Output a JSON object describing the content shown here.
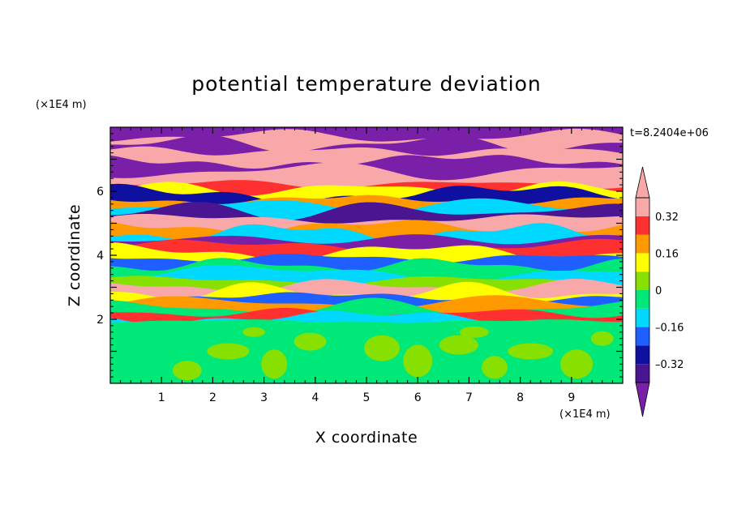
{
  "chart_data": {
    "type": "heatmap",
    "title": "potential temperature deviation",
    "xlabel": "X coordinate",
    "ylabel": "Z coordinate",
    "x_unit": "(×1E4 m)",
    "z_unit": "(×1E4 m)",
    "timestamp": "t=8.2404e+06",
    "xlim": [
      0,
      10
    ],
    "ylim": [
      0,
      8
    ],
    "x_ticks": [
      "1",
      "2",
      "3",
      "4",
      "5",
      "6",
      "7",
      "8",
      "9"
    ],
    "y_ticks": [
      "2",
      "4",
      "6"
    ],
    "colorbar": {
      "levels": [
        -0.4,
        -0.32,
        -0.24,
        -0.16,
        -0.08,
        0,
        0.08,
        0.16,
        0.24,
        0.32,
        0.4
      ],
      "tick_labels": [
        "0.32",
        "0.16",
        "0",
        "–0.16",
        "–0.32"
      ],
      "tick_values": [
        0.32,
        0.16,
        0,
        -0.16,
        -0.32
      ],
      "colors": [
        "#7a1fa8",
        "#4a1590",
        "#1010a0",
        "#1f5fff",
        "#00d8ff",
        "#00e878",
        "#88e000",
        "#ffff00",
        "#ff9900",
        "#ff3030",
        "#f8a8a8"
      ],
      "extends": "both"
    },
    "bands": [
      {
        "z": [
          7.72,
          8.0
        ],
        "value": -0.42
      },
      {
        "z": [
          7.48,
          7.72
        ],
        "value": 0.42
      },
      {
        "z": [
          7.26,
          7.48
        ],
        "value": -0.42
      },
      {
        "z": [
          6.94,
          7.26
        ],
        "value": 0.42
      },
      {
        "z": [
          6.64,
          6.94
        ],
        "value": -0.42
      },
      {
        "z": [
          6.22,
          6.64
        ],
        "value": 0.42
      },
      {
        "z": [
          6.08,
          6.22
        ],
        "value": 0.28
      },
      {
        "z": [
          5.92,
          6.08
        ],
        "value": 0.12
      },
      {
        "z": [
          5.74,
          5.92
        ],
        "value": -0.28
      },
      {
        "z": [
          5.56,
          5.74
        ],
        "value": 0.2
      },
      {
        "z": [
          5.4,
          5.56
        ],
        "value": -0.12
      },
      {
        "z": [
          5.14,
          5.4
        ],
        "value": -0.36
      },
      {
        "z": [
          4.9,
          5.14
        ],
        "value": 0.42
      },
      {
        "z": [
          4.72,
          4.9
        ],
        "value": 0.2
      },
      {
        "z": [
          4.5,
          4.72
        ],
        "value": -0.12
      },
      {
        "z": [
          4.28,
          4.5
        ],
        "value": -0.42
      },
      {
        "z": [
          4.1,
          4.28
        ],
        "value": 0.28
      },
      {
        "z": [
          3.92,
          4.1
        ],
        "value": 0.12
      },
      {
        "z": [
          3.7,
          3.92
        ],
        "value": -0.2
      },
      {
        "z": [
          3.44,
          3.7
        ],
        "value": -0.04
      },
      {
        "z": [
          3.22,
          3.44
        ],
        "value": -0.12
      },
      {
        "z": [
          3.04,
          3.22
        ],
        "value": 0.04
      },
      {
        "z": [
          2.86,
          3.04
        ],
        "value": 0.36
      },
      {
        "z": [
          2.7,
          2.86
        ],
        "value": 0.12
      },
      {
        "z": [
          2.52,
          2.7
        ],
        "value": -0.2
      },
      {
        "z": [
          2.36,
          2.52
        ],
        "value": 0.2
      },
      {
        "z": [
          2.2,
          2.36
        ],
        "value": -0.04
      },
      {
        "z": [
          2.06,
          2.2
        ],
        "value": 0.28
      },
      {
        "z": [
          1.94,
          2.06
        ],
        "value": -0.12
      },
      {
        "z": [
          0.0,
          1.94
        ],
        "value": -0.04
      }
    ]
  }
}
